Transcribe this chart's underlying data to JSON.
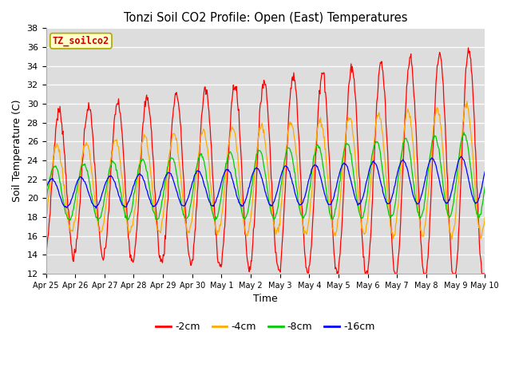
{
  "title": "Tonzi Soil CO2 Profile: Open (East) Temperatures",
  "xlabel": "Time",
  "ylabel": "Soil Temperature (C)",
  "ylim": [
    12,
    38
  ],
  "yticks": [
    12,
    14,
    16,
    18,
    20,
    22,
    24,
    26,
    28,
    30,
    32,
    34,
    36,
    38
  ],
  "legend_labels": [
    "-2cm",
    "-4cm",
    "-8cm",
    "-16cm"
  ],
  "legend_colors": [
    "#ff0000",
    "#ffaa00",
    "#00cc00",
    "#0000ff"
  ],
  "label_box_text": "TZ_soilco2",
  "label_box_bg": "#ffffcc",
  "label_box_fg": "#cc0000",
  "label_box_edge": "#aaaa00",
  "plot_bg_color": "#dddddd",
  "grid_color": "#ffffff",
  "n_days": 15,
  "tick_labels": [
    "Apr 25",
    "Apr 26",
    "Apr 27",
    "Apr 28",
    "Apr 29",
    "Apr 30",
    "May 1",
    "May 2",
    "May 3",
    "May 4",
    "May 5",
    "May 6",
    "May 7",
    "May 8",
    "May 9",
    "May 10"
  ]
}
